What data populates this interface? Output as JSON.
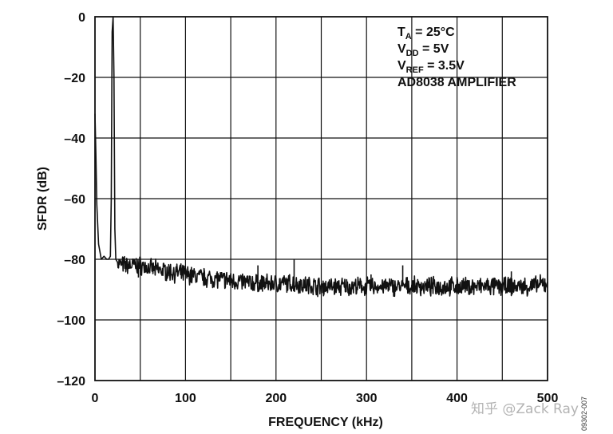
{
  "chart_data": {
    "type": "line",
    "xlabel": "FREQUENCY (kHz)",
    "ylabel": "SFDR (dB)",
    "xlim": [
      0,
      500
    ],
    "ylim": [
      -120,
      0
    ],
    "x_ticks": [
      0,
      100,
      200,
      300,
      400,
      500
    ],
    "y_ticks": [
      0,
      -20,
      -40,
      -60,
      -80,
      -100,
      -120
    ],
    "x_tick_labels": [
      "0",
      "100",
      "200",
      "300",
      "400",
      "500"
    ],
    "y_tick_labels": [
      "0",
      "–20",
      "–40",
      "–60",
      "–80",
      "–100",
      "–120"
    ],
    "grid": true,
    "annotations": {
      "ta": {
        "base": "T",
        "sub": "A",
        "rest": " = 25°C"
      },
      "vdd": {
        "base": "V",
        "sub": "DD",
        "rest": " = 5V"
      },
      "vref": {
        "base": "V",
        "sub": "REF",
        "rest": " = 3.5V"
      },
      "amp": "AD8038 AMPLIFIER"
    },
    "figure_id": "09302-007",
    "watermark": "知乎 @Zack Ray",
    "series": [
      {
        "color": "#111111",
        "x": [
          0,
          1,
          2,
          4,
          7,
          10,
          13,
          15,
          17,
          18,
          19,
          20,
          21,
          22,
          23,
          25,
          30,
          40,
          50,
          60,
          80,
          100,
          120,
          150,
          180,
          200,
          220,
          250,
          280,
          300,
          330,
          350,
          380,
          400,
          420,
          450,
          480,
          500
        ],
        "y": [
          -32,
          -45,
          -62,
          -75,
          -80,
          -79,
          -80,
          -80,
          -79,
          -60,
          -5,
          0,
          -20,
          -70,
          -80,
          -81,
          -82,
          -82,
          -82,
          -83,
          -84,
          -85,
          -86,
          -87,
          -88,
          -88,
          -88,
          -89,
          -89,
          -89,
          -89,
          -89,
          -89,
          -89,
          -89,
          -89,
          -89,
          -88
        ],
        "spurs": [
          {
            "x": 48,
            "y": -86
          },
          {
            "x": 67,
            "y": -81
          },
          {
            "x": 135,
            "y": -84
          },
          {
            "x": 180,
            "y": -82
          },
          {
            "x": 220,
            "y": -80
          },
          {
            "x": 305,
            "y": -85
          },
          {
            "x": 340,
            "y": -82
          },
          {
            "x": 460,
            "y": -84
          },
          {
            "x": 492,
            "y": -86
          }
        ]
      }
    ]
  }
}
